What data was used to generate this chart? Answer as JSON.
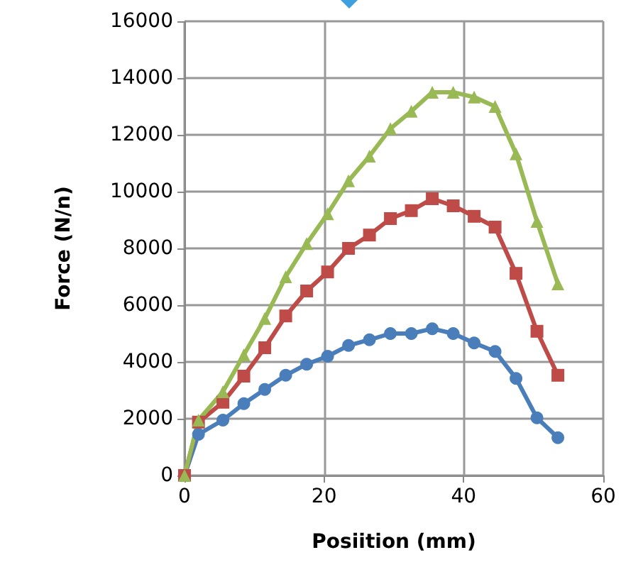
{
  "chart_data": {
    "type": "line",
    "xlabel": "Posiition (mm)",
    "ylabel": "Force (N/n)",
    "x": [
      0,
      2,
      5.5,
      8.5,
      11.5,
      14.5,
      17.5,
      20.5,
      23.5,
      26.5,
      29.5,
      32.5,
      35.5,
      38.5,
      41.5,
      44.5,
      47.5,
      50.5,
      53.5
    ],
    "series": [
      {
        "color": "#4a7ebb",
        "marker": "circle",
        "values": [
          0,
          1450,
          1950,
          2530,
          3030,
          3530,
          3920,
          4200,
          4580,
          4780,
          5000,
          5000,
          5170,
          5000,
          4670,
          4370,
          3420,
          2030,
          1330
        ]
      },
      {
        "color": "#be4b48",
        "marker": "square",
        "values": [
          0,
          1880,
          2580,
          3500,
          4500,
          5620,
          6500,
          7170,
          8000,
          8470,
          9050,
          9330,
          9750,
          9500,
          9130,
          8750,
          7120,
          5080,
          3530
        ]
      },
      {
        "color": "#98b954",
        "marker": "triangle",
        "values": [
          0,
          1950,
          2950,
          4250,
          5530,
          7000,
          8170,
          9220,
          10380,
          11250,
          12220,
          12830,
          13500,
          13500,
          13330,
          13000,
          11330,
          8950,
          6750
        ]
      }
    ],
    "xlim": [
      0,
      60
    ],
    "xticks": [
      0,
      20,
      40,
      60
    ],
    "ylim": [
      0,
      16000
    ],
    "yticks": [
      0,
      2000,
      4000,
      6000,
      8000,
      10000,
      12000,
      14000,
      16000
    ],
    "grid": true,
    "line_style": "solid"
  }
}
